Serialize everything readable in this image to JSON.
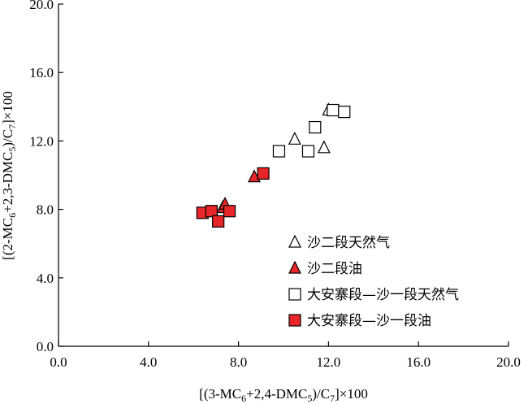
{
  "chart_data": {
    "type": "scatter",
    "xlabel": "[(3-MC6+2,4-DMC5)/C7]×100",
    "ylabel": "[(2-MC6+2,3-DMC5)/C7]×100",
    "xlim": [
      0,
      20
    ],
    "ylim": [
      0,
      20
    ],
    "x_ticks": [
      "0.0",
      "4.0",
      "8.0",
      "12.0",
      "16.0",
      "20.0"
    ],
    "y_ticks": [
      "0.0",
      "4.0",
      "8.0",
      "12.0",
      "16.0",
      "20.0"
    ],
    "grid": false,
    "legend_position": "lower-right",
    "series": [
      {
        "name": "沙二段天然气",
        "marker": "triangle-open",
        "color": "#000000",
        "points": [
          [
            10.5,
            12.1
          ],
          [
            11.8,
            11.6
          ],
          [
            12.0,
            13.8
          ]
        ]
      },
      {
        "name": "沙二段油",
        "marker": "triangle-filled",
        "color": "#e8262a",
        "points": [
          [
            8.7,
            9.9
          ],
          [
            7.3,
            8.1
          ],
          [
            7.4,
            8.3
          ]
        ]
      },
      {
        "name": "大安寨段—沙一段天然气",
        "marker": "square-open",
        "color": "#000000",
        "points": [
          [
            9.8,
            11.4
          ],
          [
            11.1,
            11.4
          ],
          [
            11.4,
            12.8
          ],
          [
            12.2,
            13.8
          ],
          [
            12.7,
            13.7
          ]
        ]
      },
      {
        "name": "大安寨段—沙一段油",
        "marker": "square-filled",
        "color": "#e8262a",
        "points": [
          [
            6.4,
            7.8
          ],
          [
            6.8,
            7.9
          ],
          [
            7.1,
            7.3
          ],
          [
            7.6,
            7.9
          ],
          [
            9.1,
            10.1
          ]
        ]
      }
    ]
  }
}
